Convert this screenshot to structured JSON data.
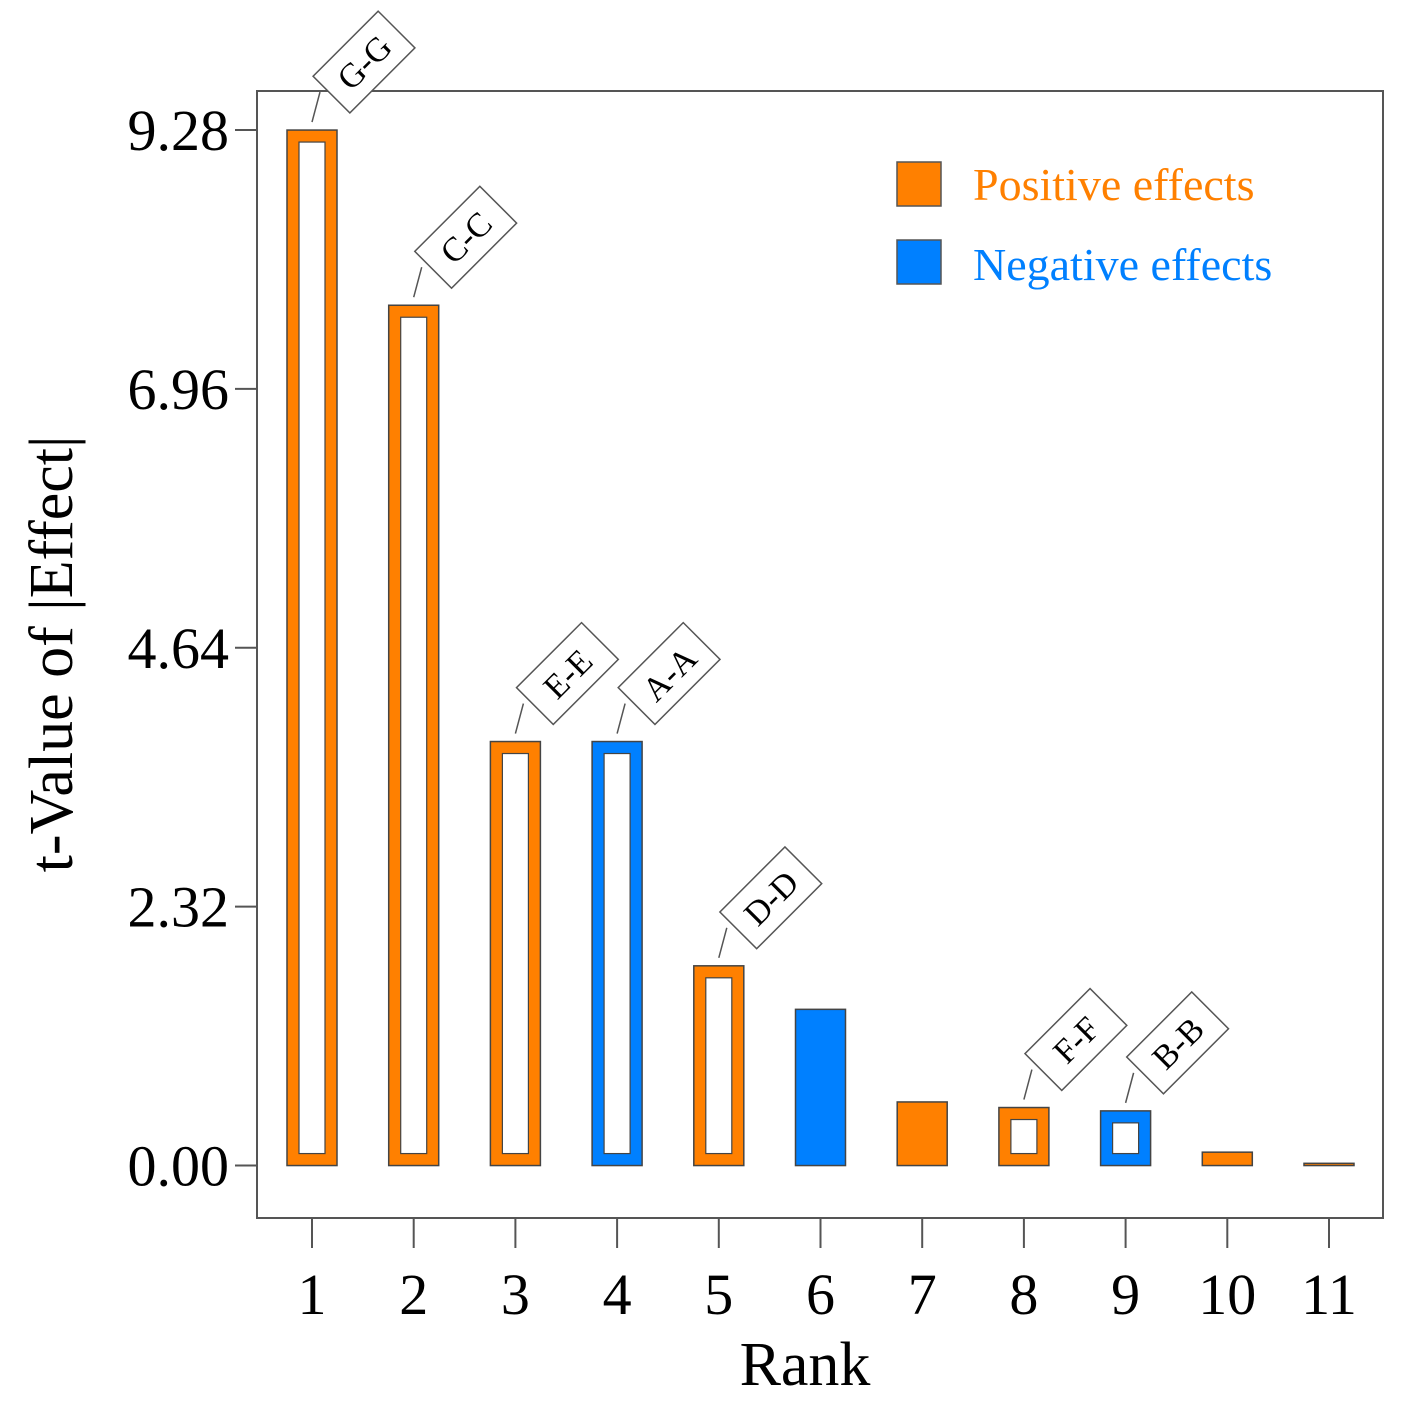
{
  "colors": {
    "positive": "#ff8000",
    "negative": "#0080ff",
    "frame": "#555555",
    "text": "#000000"
  },
  "chart_data": {
    "type": "bar",
    "title": "",
    "xlabel": "Rank",
    "ylabel": "t-Value of |Effect|",
    "categories": [
      "1",
      "2",
      "3",
      "4",
      "5",
      "6",
      "7",
      "8",
      "9",
      "10",
      "11"
    ],
    "yticks": [
      "0.00",
      "2.32",
      "4.64",
      "6.96",
      "9.28"
    ],
    "ylim": [
      -0.47,
      9.63
    ],
    "legend": {
      "position": "top-right",
      "entries": [
        {
          "label": "Positive effects",
          "sign": "positive"
        },
        {
          "label": "Negative effects",
          "sign": "negative"
        }
      ]
    },
    "bars": [
      {
        "rank": "1",
        "value": 9.28,
        "sign": "positive",
        "label": "G-G"
      },
      {
        "rank": "2",
        "value": 7.71,
        "sign": "positive",
        "label": "C-C"
      },
      {
        "rank": "3",
        "value": 3.8,
        "sign": "positive",
        "label": "E-E"
      },
      {
        "rank": "4",
        "value": 3.8,
        "sign": "negative",
        "label": "A-A"
      },
      {
        "rank": "5",
        "value": 1.79,
        "sign": "positive",
        "label": "D-D"
      },
      {
        "rank": "6",
        "value": 1.4,
        "sign": "negative",
        "label": ""
      },
      {
        "rank": "7",
        "value": 0.57,
        "sign": "positive",
        "label": ""
      },
      {
        "rank": "8",
        "value": 0.52,
        "sign": "positive",
        "label": "F-F"
      },
      {
        "rank": "9",
        "value": 0.49,
        "sign": "negative",
        "label": "B-B"
      },
      {
        "rank": "10",
        "value": 0.12,
        "sign": "positive",
        "label": ""
      },
      {
        "rank": "11",
        "value": 0.02,
        "sign": "positive",
        "label": ""
      }
    ]
  }
}
